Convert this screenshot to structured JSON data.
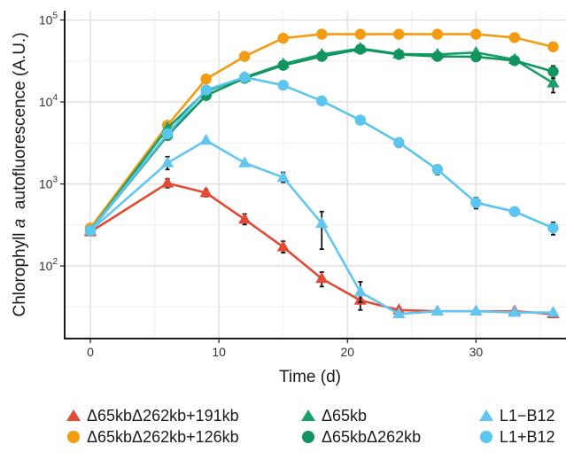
{
  "chart_data": {
    "type": "line",
    "title": "",
    "xlabel": "Time (d)",
    "ylabel_parts": [
      "Chlorophyll ",
      "a",
      "  autofluorescence (A.U.)"
    ],
    "y_scale": "log",
    "xlim": [
      -2,
      37
    ],
    "ylim": [
      13,
      130000
    ],
    "x_ticks": [
      0,
      10,
      20,
      30
    ],
    "y_ticks": [
      {
        "value": 100,
        "base": "10",
        "exp": "2"
      },
      {
        "value": 1000,
        "base": "10",
        "exp": "3"
      },
      {
        "value": 10000,
        "base": "10",
        "exp": "4"
      },
      {
        "value": 100000,
        "base": "10",
        "exp": "5"
      }
    ],
    "grid": true,
    "legend_position": "bottom",
    "series": [
      {
        "name": "Δ65kbΔ262kb+191kb",
        "color": "#e34a33",
        "marker": "triangle",
        "x": [
          0,
          6,
          9,
          12,
          15,
          18,
          21,
          24,
          27,
          30,
          33,
          36
        ],
        "y": [
          260,
          1020,
          780,
          370,
          170,
          70,
          38,
          29,
          28,
          28,
          28,
          26
        ],
        "err_low": [
          235,
          900,
          700,
          320,
          145,
          56,
          29,
          27,
          26,
          26,
          26,
          25
        ],
        "err_high": [
          285,
          1150,
          860,
          430,
          200,
          84,
          52,
          31,
          30,
          30,
          30,
          28
        ]
      },
      {
        "name": "Δ65kbΔ262kb+126kb",
        "color": "#f39c12",
        "marker": "circle",
        "x": [
          0,
          6,
          9,
          12,
          15,
          18,
          21,
          24,
          27,
          30,
          33,
          36
        ],
        "y": [
          290,
          5200,
          19000,
          36000,
          60000,
          67000,
          67000,
          67000,
          67000,
          67000,
          61000,
          47000
        ],
        "err_low": [
          270,
          4900,
          18000,
          34000,
          57000,
          64000,
          64000,
          64000,
          64000,
          64000,
          58000,
          44000
        ],
        "err_high": [
          310,
          5500,
          20000,
          38000,
          63000,
          70000,
          70000,
          70000,
          70000,
          70000,
          64000,
          50000
        ]
      },
      {
        "name": "Δ65kb",
        "color": "#16a06b",
        "marker": "triangle",
        "x": [
          0,
          6,
          9,
          12,
          15,
          18,
          21,
          24,
          27,
          30,
          33,
          36
        ],
        "y": [
          270,
          4800,
          13500,
          20000,
          29000,
          38000,
          45000,
          38500,
          38000,
          40000,
          33000,
          17000
        ],
        "err_low": [
          250,
          4500,
          12800,
          19000,
          27500,
          36000,
          42500,
          36500,
          36000,
          38000,
          31000,
          13000
        ],
        "err_high": [
          290,
          5100,
          14200,
          21000,
          30500,
          40000,
          47500,
          40500,
          40000,
          42000,
          35000,
          21000
        ]
      },
      {
        "name": "Δ65kbΔ262kb",
        "color": "#11945e",
        "marker": "circle",
        "x": [
          0,
          6,
          9,
          12,
          15,
          18,
          21,
          24,
          27,
          30,
          33,
          36
        ],
        "y": [
          270,
          3900,
          12000,
          19500,
          28000,
          36000,
          44000,
          38000,
          36000,
          35500,
          32000,
          23500
        ],
        "err_low": [
          250,
          3600,
          11400,
          18500,
          26500,
          34000,
          41500,
          36000,
          34000,
          33500,
          30000,
          19500
        ],
        "err_high": [
          290,
          4200,
          12600,
          20500,
          29500,
          38000,
          46500,
          40000,
          38000,
          37500,
          34000,
          27500
        ]
      },
      {
        "name": "L1−B12",
        "color": "#63c6f1",
        "marker": "triangle",
        "x": [
          0,
          6,
          9,
          12,
          15,
          18,
          21,
          24,
          27,
          30,
          33,
          36
        ],
        "y": [
          270,
          1800,
          3400,
          1800,
          1200,
          330,
          48,
          26,
          28,
          28,
          27,
          27
        ],
        "err_low": [
          250,
          1500,
          3200,
          1700,
          1050,
          160,
          36,
          25,
          26,
          26,
          25,
          25
        ],
        "err_high": [
          290,
          2150,
          3600,
          1900,
          1380,
          460,
          64,
          27,
          30,
          30,
          29,
          29
        ]
      },
      {
        "name": "L1+B12",
        "color": "#5bc5ef",
        "marker": "circle",
        "x": [
          0,
          6,
          9,
          12,
          15,
          18,
          21,
          24,
          27,
          30,
          33,
          36
        ],
        "y": [
          270,
          4100,
          14000,
          20000,
          16000,
          10300,
          6000,
          3200,
          1500,
          590,
          460,
          290
        ],
        "err_low": [
          250,
          3800,
          13000,
          19000,
          15000,
          9700,
          5500,
          2800,
          1300,
          500,
          410,
          240
        ],
        "err_high": [
          290,
          4400,
          15000,
          21000,
          17000,
          10900,
          6500,
          3600,
          1700,
          680,
          510,
          340
        ]
      }
    ]
  }
}
